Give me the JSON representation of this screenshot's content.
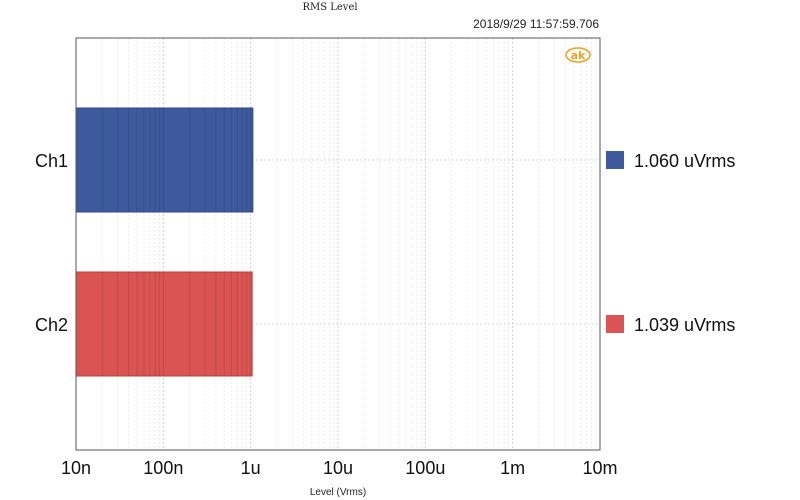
{
  "chart_data": {
    "type": "bar",
    "orientation": "horizontal",
    "title": "RMS Level",
    "timestamp": "2018/9/29 11:57:59.706",
    "xlabel": "Level (Vrms)",
    "xscale": "log",
    "xlim": [
      1e-08,
      0.01
    ],
    "categories": [
      "Ch1",
      "Ch2"
    ],
    "values": [
      1.06e-06,
      1.039e-06
    ],
    "colors": [
      "#3d5a9e",
      "#d95452"
    ],
    "x_ticks": [
      {
        "value": 1e-08,
        "label": "10n"
      },
      {
        "value": 1e-07,
        "label": "100n"
      },
      {
        "value": 1e-06,
        "label": "1u"
      },
      {
        "value": 1e-05,
        "label": "10u"
      },
      {
        "value": 0.0001,
        "label": "100u"
      },
      {
        "value": 0.001,
        "label": "1m"
      },
      {
        "value": 0.01,
        "label": "10m"
      }
    ],
    "legend": [
      {
        "label": "1.060 uVrms",
        "color": "#3d5a9e"
      },
      {
        "label": "1.039 uVrms",
        "color": "#d95452"
      }
    ],
    "legend_placement": "right",
    "grid": true,
    "logo": "ak"
  }
}
